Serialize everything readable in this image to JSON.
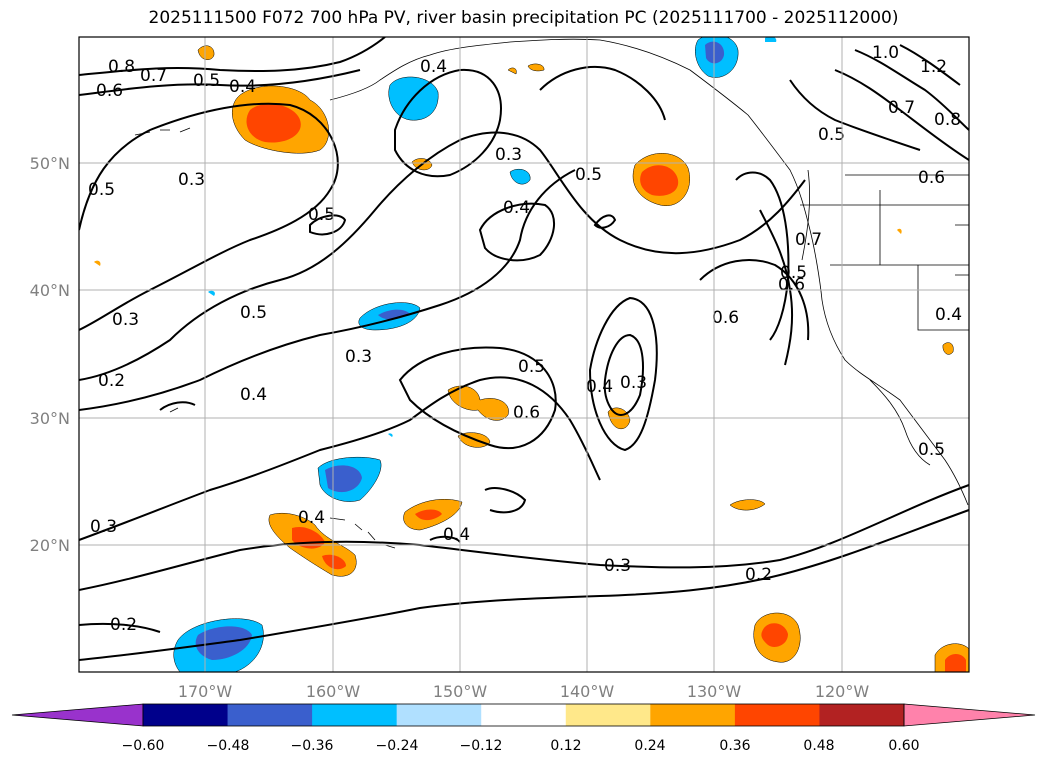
{
  "title": "2025111500 F072 700 hPa PV, river basin precipitation PC (2025111700 - 2025112000)",
  "map": {
    "lat_labels": [
      "50°N",
      "40°N",
      "30°N",
      "20°N"
    ],
    "lon_labels": [
      "170°W",
      "160°W",
      "150°W",
      "140°W",
      "130°W",
      "120°W"
    ],
    "grid": true,
    "contour_labels": [
      "0.8",
      "0.7",
      "0.6",
      "0.5",
      "0.4",
      "0.4",
      "0.3",
      "0.5",
      "0.3",
      "0.5",
      "0.4",
      "0.5",
      "1.0",
      "1.2",
      "0.7",
      "0.8",
      "0.5",
      "0.6",
      "0.7",
      "0.6",
      "0.3",
      "0.5",
      "0.2",
      "0.3",
      "0.4",
      "0.6",
      "0.5",
      "0.4",
      "0.3",
      "0.6",
      "0.4",
      "0.4",
      "0.4",
      "0.3",
      "0.3",
      "0.2",
      "0.2",
      "0.5",
      "0.5"
    ]
  },
  "colorbar": {
    "ticks": [
      "−0.60",
      "−0.48",
      "−0.36",
      "−0.24",
      "−0.12",
      "0.12",
      "0.24",
      "0.36",
      "0.48",
      "0.60"
    ],
    "colors": [
      "#9932cc",
      "#00008b",
      "#3a5fcd",
      "#00bfff",
      "#b0e0ff",
      "#ffffff",
      "#ffe88a",
      "#ffa500",
      "#ff4500",
      "#b22222",
      "#ff82ab"
    ]
  }
}
